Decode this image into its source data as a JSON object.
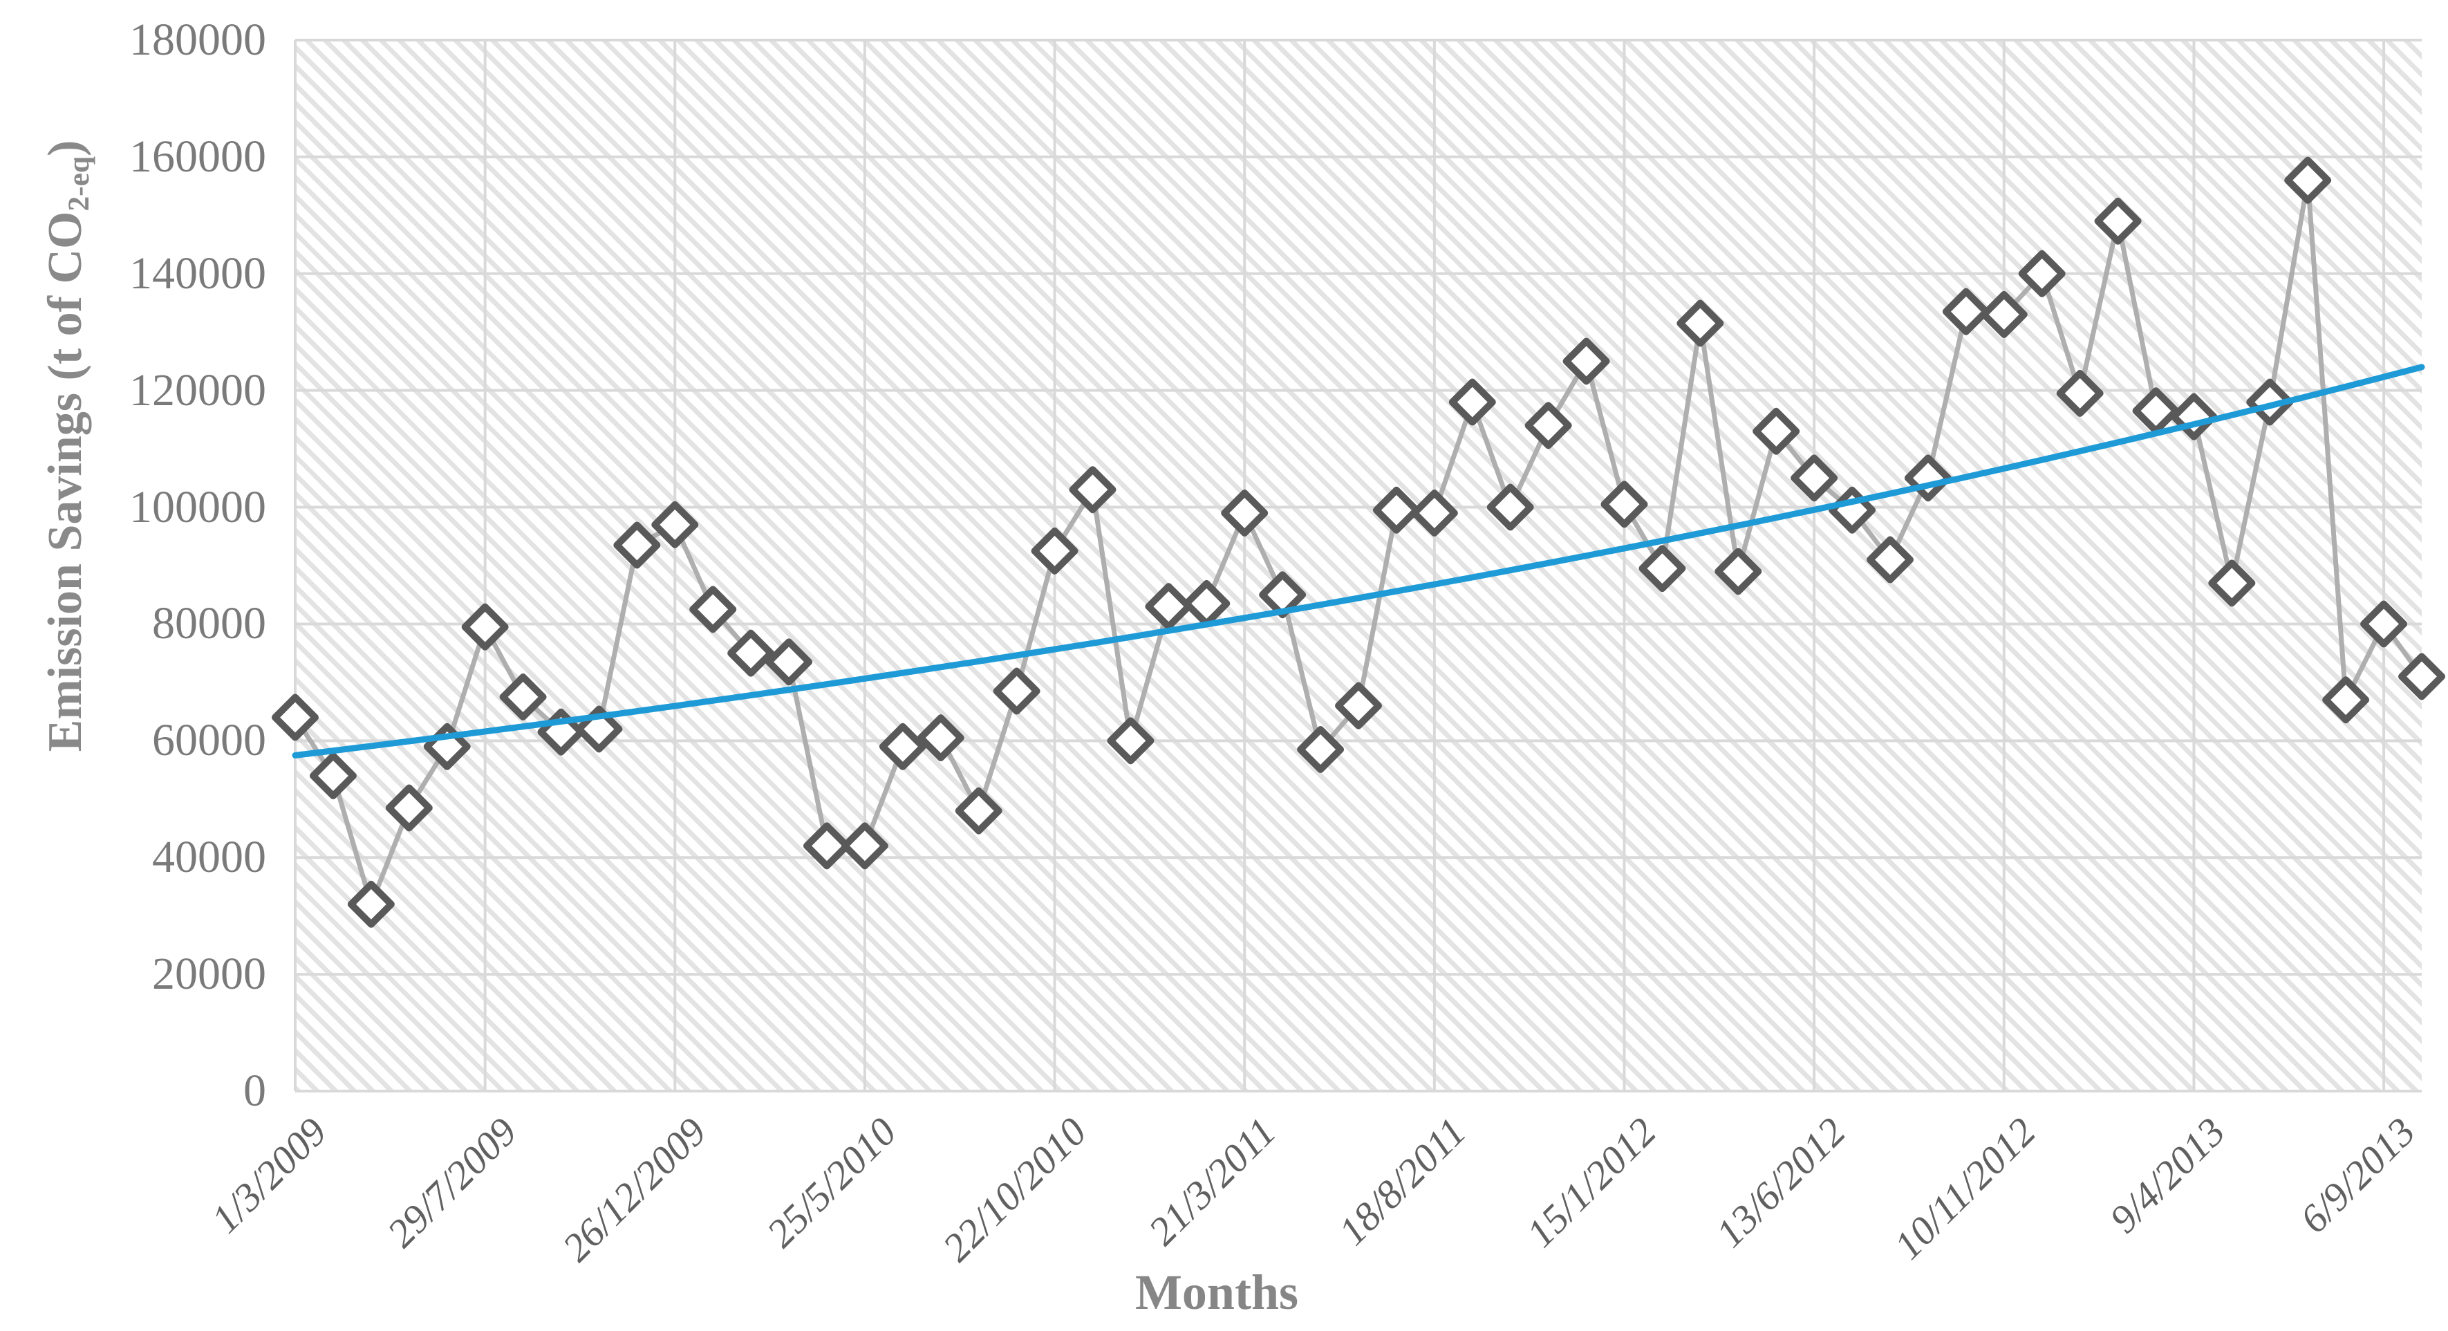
{
  "chart_data": {
    "type": "line",
    "title": "",
    "xlabel": "Months",
    "ylabel": "Emission Savings (t of CO2-eq)",
    "ylabel_prefix": "Emission Savings (t of CO",
    "ylabel_subscript": "2-eq",
    "ylabel_suffix": ")",
    "ylim": [
      0,
      180000
    ],
    "ytick_step": 20000,
    "grid": true,
    "legend_position": "none",
    "x_tick_positions": [
      1,
      6,
      11,
      16,
      21,
      26,
      31,
      36,
      41,
      46,
      51,
      56
    ],
    "x_tick_labels": [
      "1/3/2009",
      "29/7/2009",
      "26/12/2009",
      "25/5/2010",
      "22/10/2010",
      "21/3/2011",
      "18/8/2011",
      "15/1/2012",
      "13/6/2012",
      "10/11/2012",
      "9/4/2013",
      "6/9/2013"
    ],
    "n_points": 57,
    "x_interval_days": 30,
    "series": [
      {
        "name": "Emission Savings",
        "marker": "diamond",
        "values": [
          64000,
          54000,
          32000,
          48500,
          59000,
          79500,
          67500,
          61500,
          62000,
          93500,
          97000,
          82500,
          75000,
          73500,
          42000,
          42000,
          59000,
          60500,
          48000,
          68500,
          92500,
          103000,
          60000,
          83000,
          83500,
          99000,
          85000,
          58500,
          66000,
          99500,
          99000,
          118000,
          100000,
          114000,
          125000,
          100500,
          89500,
          131500,
          89000,
          113000,
          105000,
          99500,
          91000,
          105000,
          133500,
          133000,
          140000,
          119500,
          149000,
          116500,
          115500,
          87000,
          118000,
          156000,
          67000,
          80000,
          71000
        ]
      }
    ],
    "trendline": {
      "type": "exponential",
      "start_value": 57500,
      "end_value": 124000
    }
  },
  "colors": {
    "marker_stroke": "#595959",
    "marker_fill": "#ffffff",
    "series_line": "#ababab",
    "trend_line": "#1e9bd7",
    "gridline": "#d9d9d9",
    "hatch": "#e3e3e3",
    "y_tick_text": "#7a7a7a",
    "x_tick_text": "#606060",
    "title_text": "#898989"
  }
}
